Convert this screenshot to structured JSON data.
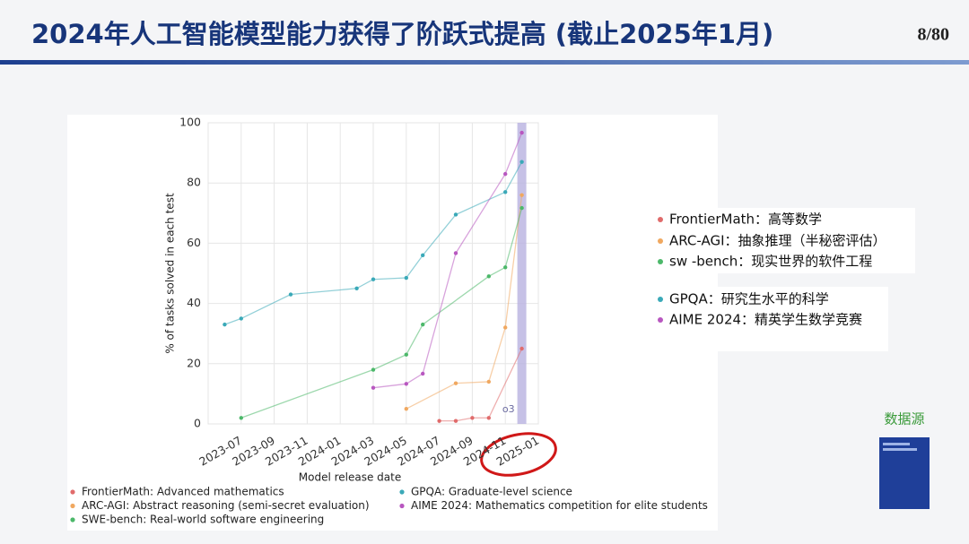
{
  "slide": {
    "title": "2024年人工智能模型能力获得了阶跃式提高 (截止2025年1月)",
    "page": "8/80",
    "source": "数据源",
    "notes": [
      "FrontierMath：高等数学",
      "ARC-AGI：抽象推理（半秘密评估）",
      "sw -bench：现实世界的软件工程",
      "GPQA：研究生水平的科学",
      "AIME 2024：精英学生数学竞赛"
    ]
  },
  "chart_data": {
    "type": "line",
    "xlabel": "Model release date",
    "ylabel": "% of tasks solved in each test",
    "xlim": [
      "2023-05",
      "2025-01"
    ],
    "xticks": [
      "2023-07",
      "2023-09",
      "2023-11",
      "2024-01",
      "2024-03",
      "2024-05",
      "2024-07",
      "2024-09",
      "2024-11",
      "2025-01"
    ],
    "ylim": [
      0,
      100
    ],
    "yticks": [
      0,
      20,
      40,
      60,
      80,
      100
    ],
    "grid": true,
    "legend": "bottom",
    "highlight": {
      "x": "2024-12",
      "label": "o3"
    },
    "series": [
      {
        "name": "FrontierMath: Advanced mathematics",
        "color": "#e06b6b",
        "x": [
          "2024-07",
          "2024-08",
          "2024-09",
          "2024-10",
          "2024-12"
        ],
        "values": [
          1,
          1,
          2,
          2,
          25
        ]
      },
      {
        "name": "ARC-AGI: Abstract reasoning (semi-secret evaluation)",
        "color": "#f0a860",
        "x": [
          "2024-05",
          "2024-08",
          "2024-10",
          "2024-11",
          "2024-12"
        ],
        "values": [
          5,
          13.5,
          14,
          32,
          76
        ]
      },
      {
        "name": "SWE-bench: Real-world software engineering",
        "color": "#4cb86a",
        "x": [
          "2023-07",
          "2024-03",
          "2024-05",
          "2024-06",
          "2024-10",
          "2024-11",
          "2024-12"
        ],
        "values": [
          2,
          18,
          23,
          33,
          49,
          52,
          71.7
        ]
      },
      {
        "name": "GPQA: Graduate-level science",
        "color": "#3aa9b8",
        "x": [
          "2023-06",
          "2023-07",
          "2023-10",
          "2024-02",
          "2024-03",
          "2024-05",
          "2024-06",
          "2024-08",
          "2024-11",
          "2024-12"
        ],
        "values": [
          33,
          35,
          43,
          45,
          48,
          48.5,
          56,
          69.5,
          77,
          87
        ]
      },
      {
        "name": "AIME 2024: Mathematics competition for elite students",
        "color": "#b857c0",
        "x": [
          "2024-03",
          "2024-05",
          "2024-06",
          "2024-08",
          "2024-11",
          "2024-12"
        ],
        "values": [
          12,
          13.3,
          16.7,
          56.7,
          83,
          96.7
        ]
      }
    ]
  }
}
